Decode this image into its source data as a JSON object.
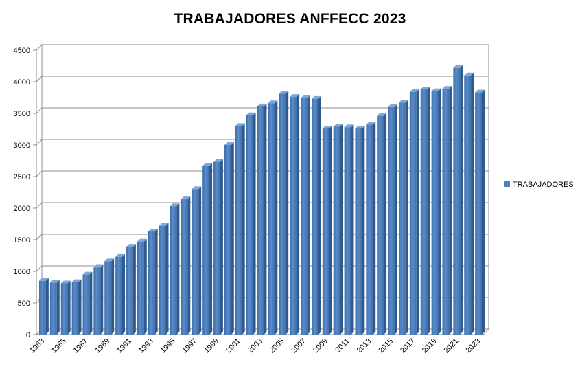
{
  "chart_data": {
    "type": "bar",
    "title": "TRABAJADORES ANFFECC 2023",
    "xlabel": "",
    "ylabel": "",
    "ylim": [
      0,
      4500
    ],
    "yticks": [
      0,
      500,
      1000,
      1500,
      2000,
      2500,
      3000,
      3500,
      4000,
      4500
    ],
    "categories": [
      "1983",
      "1984",
      "1985",
      "1986",
      "1987",
      "1988",
      "1989",
      "1990",
      "1991",
      "1992",
      "1993",
      "1994",
      "1995",
      "1996",
      "1997",
      "1998",
      "1999",
      "2000",
      "2001",
      "2002",
      "2003",
      "2004",
      "2005",
      "2006",
      "2007",
      "2008",
      "2009",
      "2010",
      "2011",
      "2012",
      "2013",
      "2014",
      "2015",
      "2016",
      "2017",
      "2018",
      "2019",
      "2020",
      "2021",
      "2022",
      "2023"
    ],
    "tick_labels": [
      "1983",
      "1985",
      "1987",
      "1989",
      "1991",
      "1993",
      "1995",
      "1997",
      "1999",
      "2001",
      "2003",
      "2005",
      "2007",
      "2009",
      "2011",
      "2013",
      "2015",
      "2017",
      "2019",
      "2021",
      "2023"
    ],
    "series": [
      {
        "name": "TRABAJADORES",
        "color": "#4F81BD",
        "values": [
          850,
          820,
          810,
          830,
          950,
          1060,
          1160,
          1230,
          1390,
          1470,
          1630,
          1720,
          2030,
          2140,
          2300,
          2670,
          2730,
          3000,
          3300,
          3470,
          3610,
          3660,
          3810,
          3760,
          3740,
          3730,
          3260,
          3290,
          3280,
          3260,
          3320,
          3460,
          3600,
          3670,
          3840,
          3880,
          3850,
          3890,
          4220,
          4100,
          3830
        ]
      }
    ],
    "grid": true,
    "legend_position": "right",
    "style": "3d-column"
  }
}
